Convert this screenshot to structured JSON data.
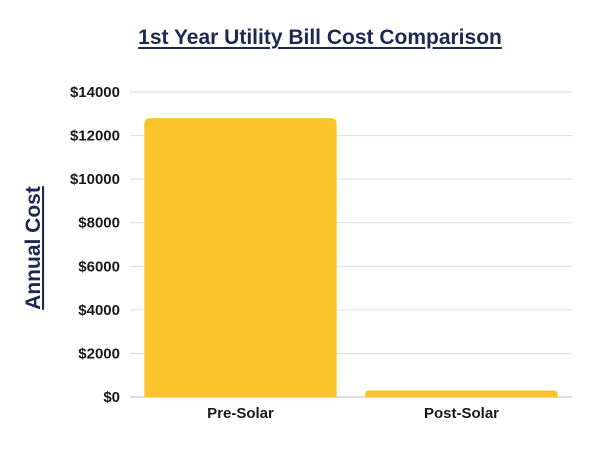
{
  "chart_data": {
    "type": "bar",
    "title": "1st Year Utility Bill Cost Comparison",
    "xlabel": "",
    "ylabel": "Annual Cost",
    "categories": [
      "Pre-Solar",
      "Post-Solar"
    ],
    "values": [
      12800,
      300
    ],
    "ylim": [
      0,
      14000
    ],
    "y_ticks": [
      0,
      2000,
      4000,
      6000,
      8000,
      10000,
      12000,
      14000
    ],
    "y_tick_labels": [
      "$0",
      "$2000",
      "$4000",
      "$6000",
      "$8000",
      "$10000",
      "$12000",
      "$14000"
    ],
    "grid": true,
    "legend": "none",
    "bar_color": "#f9c52a",
    "grid_color": "#dddddd",
    "title_color": "#1b2a4e",
    "text_color": "#1a1a1a"
  }
}
